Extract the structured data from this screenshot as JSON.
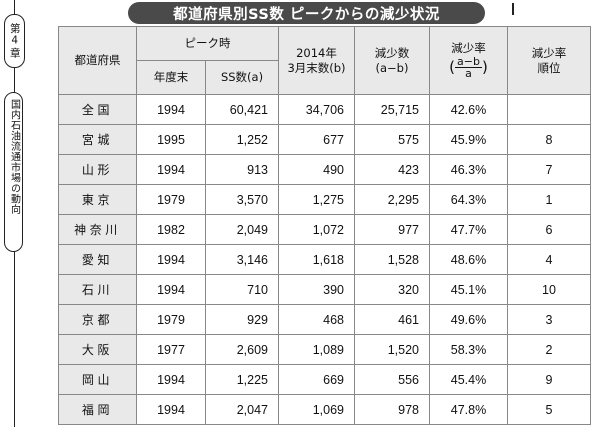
{
  "sidebar": {
    "chapter": "第4章",
    "section": "国内石油流通市場の動向"
  },
  "title": "都道府県別SS数 ピークからの減少状況",
  "table": {
    "headers": {
      "prefecture": "都道府県",
      "peak": "ピーク時",
      "peak_year": "年度末",
      "peak_ss": "SS数(a)",
      "y2014_line1": "2014年",
      "y2014_line2": "3月末数(b)",
      "decrease_line1": "減少数",
      "decrease_line2": "(a−b)",
      "rate_label": "減少率",
      "rate_numerator": "a−b",
      "rate_denominator": "a",
      "rank_line1": "減少率",
      "rank_line2": "順位"
    },
    "rows": [
      {
        "pref": "全国",
        "year": "1994",
        "peak": "60,421",
        "y2014": "34,706",
        "dec": "25,715",
        "rate": "42.6%",
        "rank": ""
      },
      {
        "pref": "宮城",
        "year": "1995",
        "peak": "1,252",
        "y2014": "677",
        "dec": "575",
        "rate": "45.9%",
        "rank": "8"
      },
      {
        "pref": "山形",
        "year": "1994",
        "peak": "913",
        "y2014": "490",
        "dec": "423",
        "rate": "46.3%",
        "rank": "7"
      },
      {
        "pref": "東京",
        "year": "1979",
        "peak": "3,570",
        "y2014": "1,275",
        "dec": "2,295",
        "rate": "64.3%",
        "rank": "1"
      },
      {
        "pref": "神奈川",
        "year": "1982",
        "peak": "2,049",
        "y2014": "1,072",
        "dec": "977",
        "rate": "47.7%",
        "rank": "6"
      },
      {
        "pref": "愛知",
        "year": "1994",
        "peak": "3,146",
        "y2014": "1,618",
        "dec": "1,528",
        "rate": "48.6%",
        "rank": "4"
      },
      {
        "pref": "石川",
        "year": "1994",
        "peak": "710",
        "y2014": "390",
        "dec": "320",
        "rate": "45.1%",
        "rank": "10"
      },
      {
        "pref": "京都",
        "year": "1979",
        "peak": "929",
        "y2014": "468",
        "dec": "461",
        "rate": "49.6%",
        "rank": "3"
      },
      {
        "pref": "大阪",
        "year": "1977",
        "peak": "2,609",
        "y2014": "1,089",
        "dec": "1,520",
        "rate": "58.3%",
        "rank": "2"
      },
      {
        "pref": "岡山",
        "year": "1994",
        "peak": "1,225",
        "y2014": "669",
        "dec": "556",
        "rate": "45.4%",
        "rank": "9"
      },
      {
        "pref": "福岡",
        "year": "1994",
        "peak": "2,047",
        "y2014": "1,069",
        "dec": "978",
        "rate": "47.8%",
        "rank": "5"
      }
    ]
  }
}
